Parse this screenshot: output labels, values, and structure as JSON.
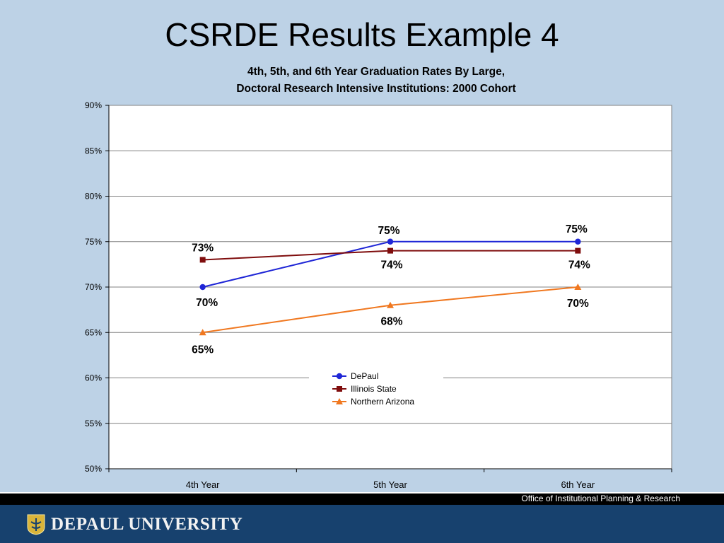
{
  "slide": {
    "title": "CSRDE Results Example 4"
  },
  "footer": {
    "office": "Office of Institutional Planning & Research",
    "logo_text": "DEPAUL UNIVERSITY"
  },
  "colors": {
    "background": "#bdd2e6",
    "footer_bar": "#17416e",
    "depaul": "#1f26d6",
    "illinois_state": "#7f0d0d",
    "northern_arizona": "#f07820"
  },
  "chart_data": {
    "type": "line",
    "title_lines": [
      "4th, 5th, and 6th Year Graduation Rates By Large,",
      "Doctoral Research Intensive Institutions: 2000 Cohort"
    ],
    "categories": [
      "4th Year",
      "5th Year",
      "6th Year"
    ],
    "yticks": [
      "90%",
      "85%",
      "80%",
      "75%",
      "70%",
      "65%",
      "60%",
      "55%",
      "50%"
    ],
    "ylim": [
      50,
      90
    ],
    "grid": true,
    "legend_position": "center-bottom",
    "series": [
      {
        "name": "DePaul",
        "marker": "circle",
        "color": "#1f26d6",
        "values": [
          70,
          75,
          75
        ],
        "labels": [
          "70%",
          "75%",
          "75%"
        ]
      },
      {
        "name": "Illinois State",
        "marker": "square",
        "color": "#7f0d0d",
        "values": [
          73,
          74,
          74
        ],
        "labels": [
          "73%",
          "74%",
          "74%"
        ]
      },
      {
        "name": "Northern Arizona",
        "marker": "triangle",
        "color": "#f07820",
        "values": [
          65,
          68,
          70
        ],
        "labels": [
          "65%",
          "68%",
          "70%"
        ]
      }
    ]
  }
}
